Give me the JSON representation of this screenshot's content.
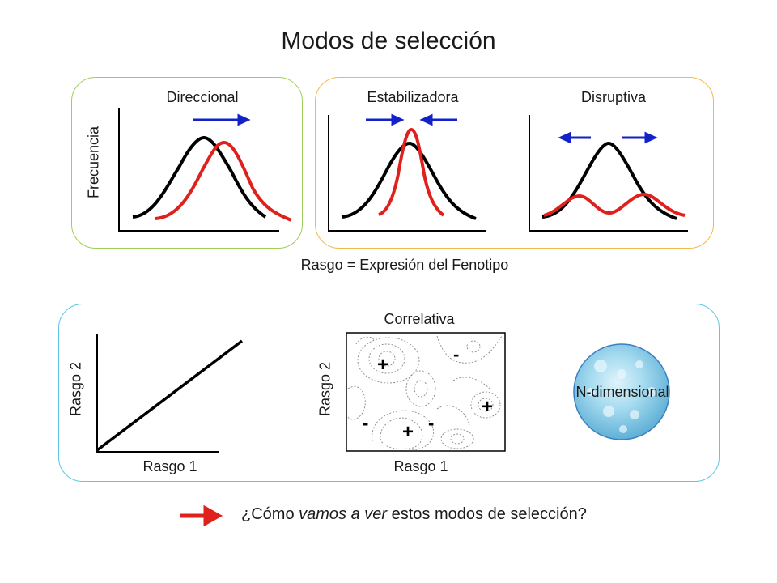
{
  "title": "Modos de selección",
  "panels": {
    "direccional": "Direccional",
    "estabilizadora": "Estabilizadora",
    "disruptiva": "Disruptiva",
    "frecuencia": "Frecuencia",
    "rasgo_caption": "Rasgo = Expresión del Fenotipo"
  },
  "lower": {
    "correlativa": "Correlativa",
    "rasgo1_left": "Rasgo 1",
    "rasgo2_left": "Rasgo 2",
    "rasgo1_mid": "Rasgo 1",
    "rasgo2_mid": "Rasgo 2",
    "ndim": "N-dimensional",
    "plus": "+",
    "minus": "-"
  },
  "question": {
    "before": "¿Cómo ",
    "italic": "vamos a ver",
    "after": " estos modos de selección?"
  },
  "colors": {
    "black_curve": "#000000",
    "red_curve": "#e0201b",
    "blue_arrow": "#1222c8",
    "red_arrow": "#e0201b"
  }
}
